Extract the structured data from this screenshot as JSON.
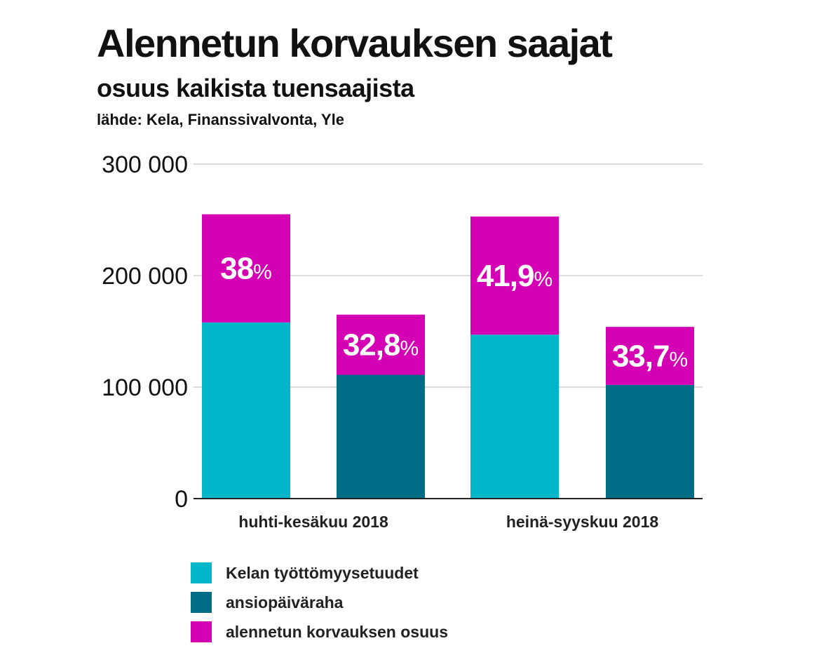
{
  "title": "Alennetun korvauksen saajat",
  "subtitle": "osuus kaikista tuensaajista",
  "source": "lähde: Kela, Finanssivalvonta, Yle",
  "colors": {
    "kela": "#00b6c9",
    "ansio": "#006d86",
    "share": "#d400b3",
    "grid": "#d0d0d0",
    "axis": "#222222"
  },
  "chart_data": {
    "type": "bar",
    "stacked": true,
    "categories": [
      "huhti-kesäkuu 2018",
      "heinä-syyskuu 2018"
    ],
    "ylim": [
      0,
      300000
    ],
    "yticks": [
      0,
      100000,
      200000,
      300000
    ],
    "ytick_labels": [
      "0",
      "100 000",
      "200 000",
      "300 000"
    ],
    "grid": true,
    "bars": [
      {
        "category": "huhti-kesäkuu 2018",
        "series": "Kelan työttömyysetuudet",
        "base": 158000,
        "reduced": 97000,
        "total": 255000,
        "share_label": "38",
        "share_unit": "%"
      },
      {
        "category": "huhti-kesäkuu 2018",
        "series": "ansiopäiväraha",
        "base": 111000,
        "reduced": 54000,
        "total": 165000,
        "share_label": "32,8",
        "share_unit": "%"
      },
      {
        "category": "heinä-syyskuu 2018",
        "series": "Kelan työttömyysetuudet",
        "base": 147000,
        "reduced": 106000,
        "total": 253000,
        "share_label": "41,9",
        "share_unit": "%"
      },
      {
        "category": "heinä-syyskuu 2018",
        "series": "ansiopäiväraha",
        "base": 102000,
        "reduced": 52000,
        "total": 154000,
        "share_label": "33,7",
        "share_unit": "%"
      }
    ],
    "legend": [
      {
        "label": "Kelan työttömyysetuudet",
        "color": "#00b6c9"
      },
      {
        "label": "ansiopäiväraha",
        "color": "#006d86"
      },
      {
        "label": "alennetun korvauksen osuus",
        "color": "#d400b3"
      }
    ],
    "legend_position": "bottom-left"
  }
}
